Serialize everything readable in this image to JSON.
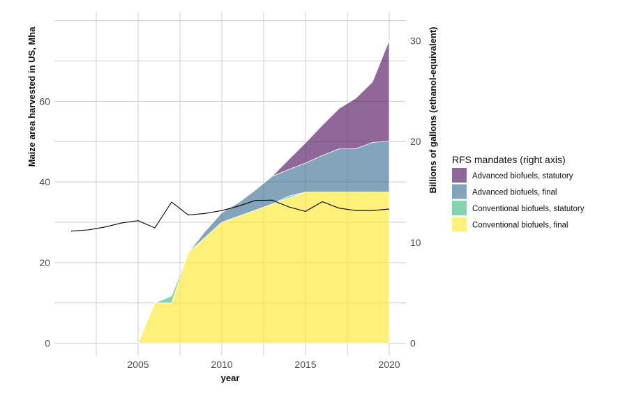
{
  "chart_data": {
    "type": "area",
    "xlabel": "year",
    "ylabel_left": "Maize area harvested in US, Mha",
    "ylabel_right": "Billions of gallons (ethanol-equivalent)",
    "legend_title": "RFS mandates (right axis)",
    "legend_position": "right",
    "grid": true,
    "xlim": [
      2000,
      2021
    ],
    "ylim_left": [
      -3,
      82
    ],
    "ylim_right": [
      -1.2,
      32.8
    ],
    "x_ticks": [
      "2005",
      "2010",
      "2015",
      "2020"
    ],
    "y_left_ticks": [
      "0",
      "20",
      "40",
      "60"
    ],
    "y_right_ticks": [
      "0",
      "10",
      "20",
      "30"
    ],
    "x": [
      2005,
      2006,
      2007,
      2008,
      2009,
      2010,
      2011,
      2012,
      2013,
      2014,
      2015,
      2016,
      2017,
      2018,
      2019,
      2020
    ],
    "series": [
      {
        "name": "Conventional biofuels, final",
        "color": "#fde725",
        "values": [
          0,
          4.0,
          4.0,
          9.0,
          10.5,
          12.0,
          12.6,
          13.2,
          13.8,
          14.4,
          15.0,
          15.0,
          15.0,
          15.0,
          15.0,
          15.0
        ]
      },
      {
        "name": "Conventional biofuels, statutory",
        "color": "#35b779",
        "values": [
          0,
          0,
          0.7,
          0,
          0,
          0,
          0,
          0,
          0,
          0.2,
          0,
          0,
          0,
          0,
          0,
          0
        ]
      },
      {
        "name": "Advanced biofuels, final",
        "color": "#31688e",
        "values": [
          0,
          0,
          0,
          0,
          0.6,
          0.95,
          1.35,
          2.0,
          2.75,
          2.63,
          2.88,
          3.61,
          4.28,
          4.29,
          4.92,
          5.04
        ]
      },
      {
        "name": "Advanced biofuels, statutory",
        "color": "#440154",
        "values": [
          0,
          0,
          0,
          0,
          0,
          0,
          0,
          0,
          0,
          1.0,
          2.0,
          3.0,
          4.0,
          5.0,
          6.0,
          10.0
        ]
      }
    ],
    "line": {
      "axis": "left",
      "color": "#000000",
      "x": [
        2001,
        2002,
        2003,
        2004,
        2005,
        2006,
        2007,
        2008,
        2009,
        2010,
        2011,
        2012,
        2013,
        2014,
        2015,
        2016,
        2017,
        2018,
        2019,
        2020
      ],
      "values": [
        27.8,
        28.1,
        28.8,
        29.8,
        30.4,
        28.6,
        35.0,
        31.8,
        32.2,
        32.9,
        34.0,
        35.4,
        35.5,
        33.8,
        32.7,
        35.1,
        33.5,
        32.9,
        32.9,
        33.3
      ]
    }
  }
}
